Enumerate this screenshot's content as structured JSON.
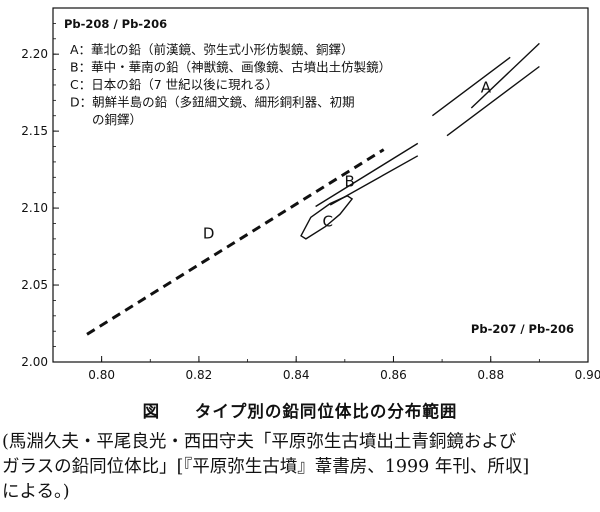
{
  "chart_data": {
    "type": "line",
    "title": "",
    "xlabel": "Pb-207 / Pb-206",
    "ylabel": "Pb-208 / Pb-206",
    "xlim": [
      0.79,
      0.9
    ],
    "ylim": [
      2.0,
      2.23
    ],
    "x_ticks": [
      0.8,
      0.82,
      0.84,
      0.86,
      0.88,
      0.9
    ],
    "x_tick_labels": [
      "0.80",
      "0.82",
      "0.84",
      "0.86",
      "0.88",
      "0.90"
    ],
    "y_ticks": [
      2.0,
      2.05,
      2.1,
      2.15,
      2.2
    ],
    "y_tick_labels": [
      "2.00",
      "2.05",
      "2.10",
      "2.15",
      "2.20"
    ],
    "grid": false,
    "legend": [
      "A：華北の鉛（前漢鏡、弥生式小形仿製鏡、銅鐸）",
      "B：華中・華南の鉛（神獣鏡、画像鏡、古墳出土仿製鏡）",
      "C：日本の鉛（7 世紀以後に現れる）",
      "D：朝鮮半島の鉛（多鈕細文鏡、細形銅利器、初期",
      "の銅鐸）"
    ],
    "regions": [
      {
        "label": "A",
        "label_at": [
          0.879,
          2.179
        ],
        "style": "band",
        "upper": [
          [
            0.876,
            2.165
          ],
          [
            0.89,
            2.207
          ]
        ],
        "lower": [
          [
            0.871,
            2.147
          ],
          [
            0.89,
            2.192
          ]
        ],
        "lower_left_segment": [
          [
            0.868,
            2.16
          ],
          [
            0.884,
            2.198
          ]
        ]
      },
      {
        "label": "B",
        "label_at": [
          0.851,
          2.118
        ],
        "style": "band",
        "upper": [
          [
            0.844,
            2.101
          ],
          [
            0.865,
            2.142
          ]
        ],
        "lower": [
          [
            0.847,
            2.102
          ],
          [
            0.865,
            2.134
          ]
        ]
      },
      {
        "label": "C",
        "label_at": [
          0.8465,
          2.092
        ],
        "style": "closed",
        "outline": [
          [
            0.841,
            2.082
          ],
          [
            0.843,
            2.094
          ],
          [
            0.847,
            2.103
          ],
          [
            0.8505,
            2.108
          ],
          [
            0.8515,
            2.106
          ],
          [
            0.849,
            2.096
          ],
          [
            0.846,
            2.088
          ],
          [
            0.842,
            2.08
          ]
        ]
      },
      {
        "label": "D",
        "label_at": [
          0.822,
          2.084
        ],
        "style": "dashed",
        "line": [
          [
            0.797,
            2.018
          ],
          [
            0.858,
            2.138
          ]
        ]
      }
    ]
  },
  "figure_title": {
    "label": "図",
    "text": "タイプ別の鉛同位体比の分布範囲"
  },
  "caption": {
    "lines": [
      "(馬淵久夫・平尾良光・西田守夫「平原弥生古墳出土青銅鏡および",
      "ガラスの鉛同位体比」[『平原弥生古墳』葦書房、1999 年刊、所収]",
      "による。)"
    ]
  }
}
